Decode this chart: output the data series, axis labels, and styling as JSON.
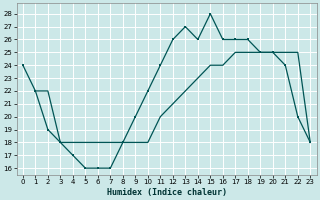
{
  "xlabel": "Humidex (Indice chaleur)",
  "bg_color": "#cce8e8",
  "grid_color": "#b0d8d8",
  "line_color": "#005555",
  "ylim": [
    15.5,
    28.8
  ],
  "xlim": [
    -0.5,
    23.5
  ],
  "yticks": [
    16,
    17,
    18,
    19,
    20,
    21,
    22,
    23,
    24,
    25,
    26,
    27,
    28
  ],
  "xticks": [
    0,
    1,
    2,
    3,
    4,
    5,
    6,
    7,
    8,
    9,
    10,
    11,
    12,
    13,
    14,
    15,
    16,
    17,
    18,
    19,
    20,
    21,
    22,
    23
  ],
  "line1_x": [
    0,
    1,
    2,
    3,
    4,
    5,
    6,
    7,
    8,
    9,
    10,
    11,
    12,
    13,
    14,
    15,
    16,
    17,
    18,
    19,
    20,
    21,
    22,
    23
  ],
  "line1_y": [
    24,
    22,
    19,
    18,
    17,
    16,
    16,
    16,
    18,
    20,
    22,
    24,
    26,
    27,
    26,
    28,
    26,
    26,
    26,
    25,
    25,
    24,
    20,
    18
  ],
  "line2_x": [
    1,
    2,
    3,
    4,
    5,
    6,
    7,
    8,
    9,
    10,
    11,
    12,
    13,
    14,
    15,
    16,
    17,
    18,
    19,
    20,
    21,
    22,
    23
  ],
  "line2_y": [
    22,
    22,
    18,
    18,
    18,
    18,
    18,
    18,
    18,
    18,
    20,
    21,
    22,
    23,
    24,
    24,
    25,
    25,
    25,
    25,
    25,
    25,
    18
  ]
}
